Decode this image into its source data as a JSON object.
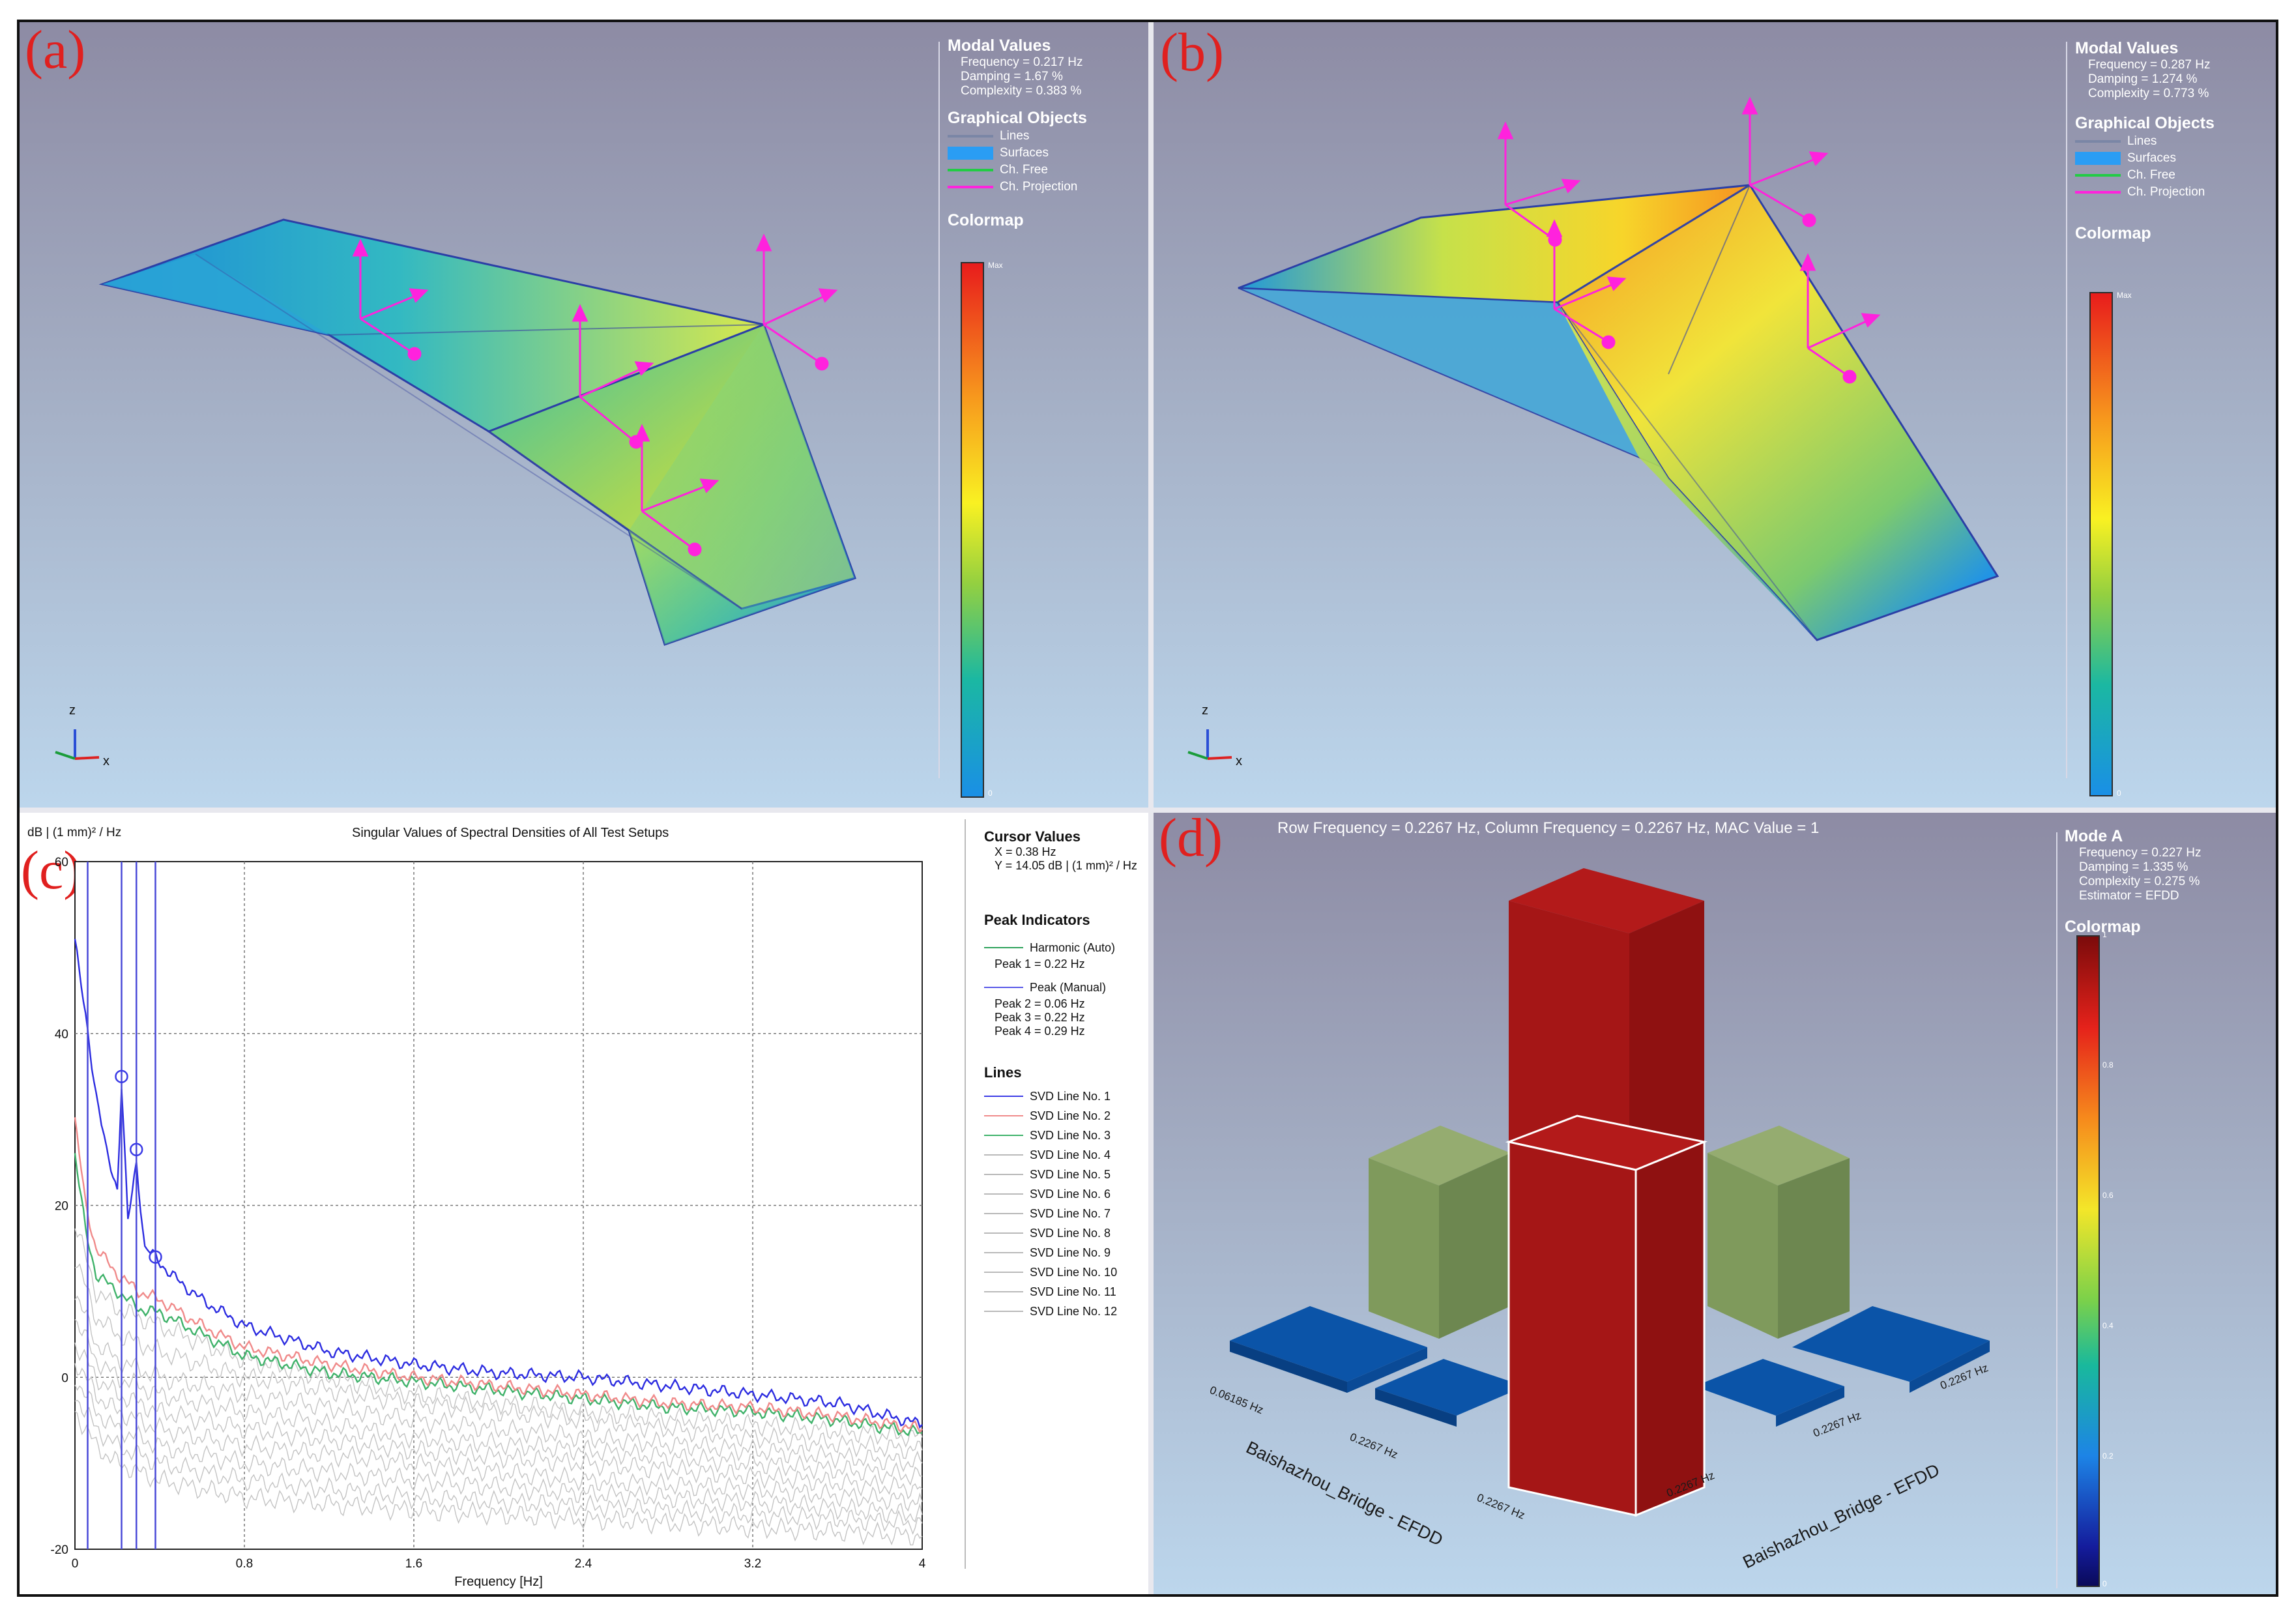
{
  "panel_labels": {
    "a": "(a)",
    "b": "(b)",
    "c": "(c)",
    "d": "(d)"
  },
  "panel_a": {
    "modal_title": "Modal Values",
    "frequency": "Frequency = 0.217 Hz",
    "damping": "Damping = 1.67 %",
    "complexity": "Complexity = 0.383 %",
    "objects_title": "Graphical Objects",
    "objects": [
      {
        "label": "Lines",
        "color": "#7a86a6"
      },
      {
        "label": "Surfaces",
        "color": "#2a9df4"
      },
      {
        "label": "Ch. Free",
        "color": "#22cc44"
      },
      {
        "label": "Ch. Projection",
        "color": "#ff22dd"
      }
    ],
    "colormap_title": "Colormap",
    "cmap_max": "Max",
    "cmap_min": "0",
    "axis_z": "z",
    "axis_x": "x"
  },
  "panel_b": {
    "modal_title": "Modal Values",
    "frequency": "Frequency = 0.287 Hz",
    "damping": "Damping = 1.274 %",
    "complexity": "Complexity = 0.773 %",
    "objects_title": "Graphical Objects",
    "objects": [
      {
        "label": "Lines",
        "color": "#7a86a6"
      },
      {
        "label": "Surfaces",
        "color": "#2a9df4"
      },
      {
        "label": "Ch. Free",
        "color": "#22cc44"
      },
      {
        "label": "Ch. Projection",
        "color": "#ff22dd"
      }
    ],
    "colormap_title": "Colormap",
    "cmap_max": "Max",
    "cmap_min": "0",
    "axis_z": "z",
    "axis_x": "x"
  },
  "panel_c": {
    "title": "Singular Values of Spectral Densities of All Test Setups",
    "y_unit": "dB | (1 mm)² / Hz",
    "xlabel": "Frequency [Hz]",
    "cursor": {
      "title": "Cursor Values",
      "x": "X = 0.38 Hz",
      "y": "Y = 14.05 dB | (1 mm)² / Hz"
    },
    "peaks": {
      "title": "Peak Indicators",
      "harmonic": "Harmonic (Auto)",
      "peak1": "Peak 1 = 0.22 Hz",
      "manual": "Peak (Manual)",
      "peak2": "Peak 2 = 0.06 Hz",
      "peak3": "Peak 3 = 0.22 Hz",
      "peak4": "Peak 4 = 0.29 Hz"
    },
    "lines_title": "Lines",
    "lines": [
      {
        "label": "SVD Line No. 1",
        "color": "#3b3be6"
      },
      {
        "label": "SVD Line No. 2",
        "color": "#f08a8a"
      },
      {
        "label": "SVD Line No. 3",
        "color": "#3fb26a"
      },
      {
        "label": "SVD Line No. 4",
        "color": "#b9b9b9"
      },
      {
        "label": "SVD Line No. 5",
        "color": "#b9b9b9"
      },
      {
        "label": "SVD Line No. 6",
        "color": "#b9b9b9"
      },
      {
        "label": "SVD Line No. 7",
        "color": "#b9b9b9"
      },
      {
        "label": "SVD Line No. 8",
        "color": "#b9b9b9"
      },
      {
        "label": "SVD Line No. 9",
        "color": "#b9b9b9"
      },
      {
        "label": "SVD Line No. 10",
        "color": "#b9b9b9"
      },
      {
        "label": "SVD Line No. 11",
        "color": "#b9b9b9"
      },
      {
        "label": "SVD Line No. 12",
        "color": "#b9b9b9"
      }
    ]
  },
  "chart_data": {
    "type": "line",
    "title": "Singular Values of Spectral Densities of All Test Setups",
    "xlabel": "Frequency [Hz]",
    "ylabel": "dB | (1 mm)² / Hz",
    "xlim": [
      0,
      4
    ],
    "ylim": [
      -20,
      60
    ],
    "xticks": [
      "0",
      "0.8",
      "1.6",
      "2.4",
      "3.2",
      "4"
    ],
    "yticks": [
      "-20",
      "0",
      "20",
      "40",
      "60"
    ],
    "grid": true,
    "peak_markers": [
      {
        "x": 0.22,
        "y": 35
      },
      {
        "x": 0.29,
        "y": 26.5
      },
      {
        "x": 0.38,
        "y": 14
      }
    ],
    "vertical_lines_x": [
      0.06,
      0.22,
      0.29,
      0.38
    ],
    "series": [
      {
        "name": "SVD Line No. 1",
        "color": "#2c2ce0",
        "x": [
          0,
          0.02,
          0.05,
          0.1,
          0.15,
          0.2,
          0.22,
          0.25,
          0.29,
          0.33,
          0.38,
          0.45,
          0.6,
          0.8,
          1.2,
          1.6,
          2.0,
          2.4,
          2.8,
          3.2,
          3.6,
          4.0
        ],
        "y": [
          51,
          47,
          42,
          33,
          26,
          22,
          34,
          18,
          25,
          15,
          14,
          12,
          9,
          6,
          3,
          1.5,
          0.5,
          0,
          -1,
          -2,
          -3,
          -5.5
        ]
      },
      {
        "name": "SVD Line No. 2",
        "color": "#f08a8a",
        "x": [
          0,
          0.05,
          0.1,
          0.2,
          0.3,
          0.4,
          0.6,
          0.8,
          1.2,
          1.6,
          2.0,
          2.4,
          2.8,
          3.2,
          3.6,
          4.0
        ],
        "y": [
          30,
          20,
          15,
          12,
          10,
          9,
          6,
          3.5,
          1.5,
          0,
          -1,
          -2,
          -3,
          -3.5,
          -4.5,
          -6
        ]
      },
      {
        "name": "SVD Line No. 3",
        "color": "#3fb26a",
        "x": [
          0,
          0.05,
          0.1,
          0.2,
          0.3,
          0.4,
          0.6,
          0.8,
          1.2,
          1.6,
          2.0,
          2.4,
          2.8,
          3.2,
          3.6,
          4.0
        ],
        "y": [
          26,
          17,
          12,
          10,
          8,
          7.5,
          5,
          2.5,
          0.5,
          -0.5,
          -1.5,
          -2.5,
          -3.5,
          -4,
          -5,
          -6.5
        ]
      },
      {
        "name": "SVD Line No. 4",
        "color": "#c3c3c3",
        "x": [
          0,
          0.1,
          0.2,
          0.4,
          0.8,
          1.6,
          2.4,
          3.2,
          4.0
        ],
        "y": [
          18,
          10,
          8,
          6,
          2,
          -2,
          -4,
          -5.5,
          -7
        ]
      },
      {
        "name": "SVD Line No. 5",
        "color": "#c3c3c3",
        "x": [
          0,
          0.1,
          0.2,
          0.4,
          0.8,
          1.6,
          2.4,
          3.2,
          4.0
        ],
        "y": [
          14,
          7,
          5,
          3,
          0,
          -3,
          -5,
          -7,
          -8.5
        ]
      },
      {
        "name": "SVD Line No. 6",
        "color": "#c3c3c3",
        "x": [
          0,
          0.1,
          0.2,
          0.4,
          0.8,
          1.6,
          2.4,
          3.2,
          4.0
        ],
        "y": [
          10,
          4,
          2,
          0,
          -2,
          -5,
          -7,
          -8.5,
          -10
        ]
      },
      {
        "name": "SVD Line No. 7",
        "color": "#c3c3c3",
        "x": [
          0,
          0.1,
          0.2,
          0.4,
          0.8,
          1.6,
          2.4,
          3.2,
          4.0
        ],
        "y": [
          7,
          2,
          0,
          -2,
          -4,
          -7,
          -8.5,
          -10,
          -11.5
        ]
      },
      {
        "name": "SVD Line No. 8",
        "color": "#c3c3c3",
        "x": [
          0,
          0.1,
          0.2,
          0.4,
          0.8,
          1.6,
          2.4,
          3.2,
          4.0
        ],
        "y": [
          4,
          0,
          -2,
          -4,
          -6,
          -8.5,
          -10,
          -11.5,
          -13
        ]
      },
      {
        "name": "SVD Line No. 9",
        "color": "#c3c3c3",
        "x": [
          0,
          0.1,
          0.2,
          0.4,
          0.8,
          1.6,
          2.4,
          3.2,
          4.0
        ],
        "y": [
          2,
          -2,
          -4,
          -6,
          -8,
          -10,
          -12,
          -13,
          -14.5
        ]
      },
      {
        "name": "SVD Line No. 10",
        "color": "#c3c3c3",
        "x": [
          0,
          0.1,
          0.2,
          0.4,
          0.8,
          1.6,
          2.4,
          3.2,
          4.0
        ],
        "y": [
          0,
          -4,
          -6,
          -8,
          -10,
          -12,
          -13.5,
          -14.5,
          -16
        ]
      },
      {
        "name": "SVD Line No. 11",
        "color": "#c3c3c3",
        "x": [
          0,
          0.1,
          0.2,
          0.4,
          0.8,
          1.6,
          2.4,
          3.2,
          4.0
        ],
        "y": [
          -2,
          -6,
          -8,
          -10,
          -12,
          -14,
          -15,
          -16,
          -17
        ]
      },
      {
        "name": "SVD Line No. 12",
        "color": "#c3c3c3",
        "x": [
          0,
          0.1,
          0.2,
          0.4,
          0.8,
          1.6,
          2.4,
          3.2,
          4.0
        ],
        "y": [
          -4,
          -8,
          -10,
          -12,
          -14,
          -15.5,
          -16.5,
          -17.5,
          -18.5
        ]
      }
    ]
  },
  "panel_d": {
    "header": "Row Frequency = 0.2267 Hz, Column Frequency = 0.2267 Hz, MAC Value = 1",
    "mode_title": "Mode A",
    "frequency": "Frequency = 0.227 Hz",
    "damping": "Damping = 1.335 %",
    "complexity": "Complexity = 0.275 %",
    "estimator": "Estimator = EFDD",
    "colormap_title": "Colormap",
    "cmap_ticks": [
      "1",
      "0.8",
      "0.6",
      "0.4",
      "0.2",
      "0"
    ],
    "axis_left": "Baishazhou_Bridge - EFDD",
    "axis_right": "Baishazhou_Bridge - EFDD",
    "tick_left": [
      "0.06185 Hz",
      "0.2267 Hz",
      "0.2267 Hz"
    ],
    "tick_right": [
      "0.2267 Hz",
      "0.2267 Hz",
      "0.2267 Hz"
    ],
    "colors": {
      "red": "#b31a1a",
      "green": "#8aa263",
      "blue": "#0b54a8"
    }
  }
}
